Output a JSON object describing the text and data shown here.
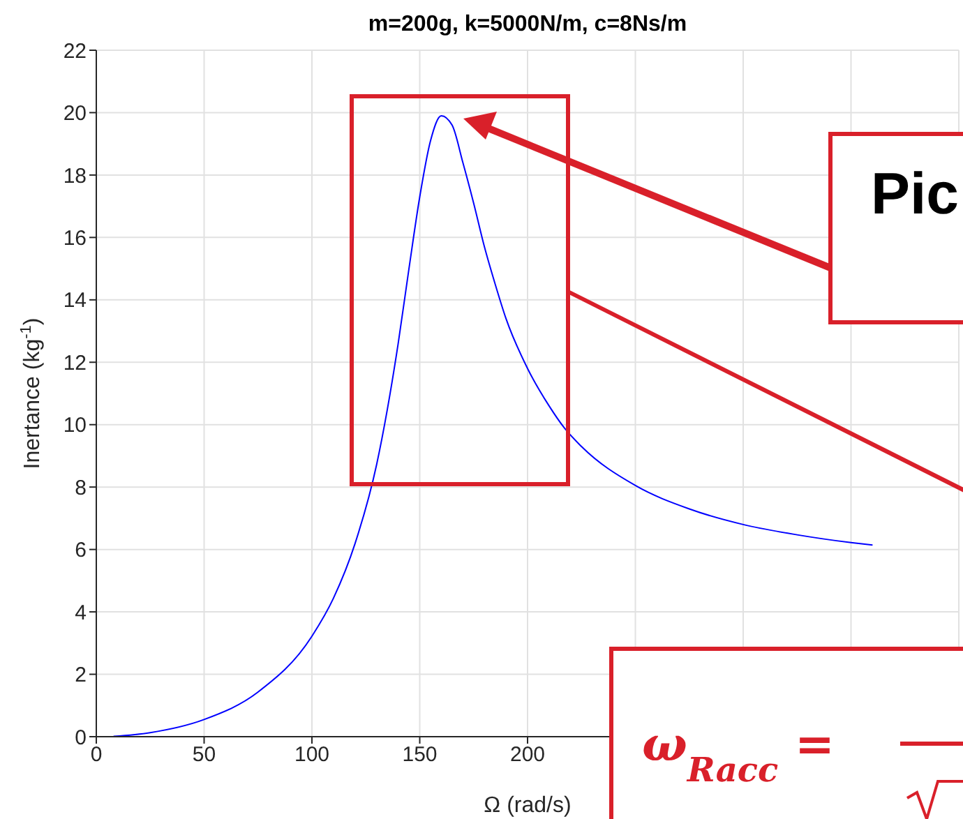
{
  "chart_data": {
    "type": "line",
    "title": "m=200g, k=5000N/m, c=8Ns/m",
    "xlabel": "Ω (rad/s)",
    "ylabel": "Inertance (kg$^{-1}$)",
    "x": [
      8,
      25,
      50,
      75,
      100,
      110,
      120,
      130,
      135,
      140,
      145,
      150,
      155,
      160,
      165,
      170,
      175,
      180,
      185,
      190,
      200,
      210,
      217,
      225,
      250,
      275,
      300,
      325,
      350,
      360
    ],
    "series": [
      {
        "color": "#0000ff",
        "values": [
          0.01,
          0.13,
          0.55,
          1.43,
          3.22,
          4.44,
          6.19,
          8.72,
          10.5,
          12.6,
          15.0,
          17.3,
          19.1,
          19.9,
          19.6,
          18.4,
          17.1,
          15.7,
          14.5,
          13.4,
          11.8,
          10.6,
          9.9,
          9.3,
          8.05,
          7.3,
          6.8,
          6.47,
          6.22,
          6.14
        ]
      }
    ],
    "xlim": [
      0,
      400
    ],
    "xticks": [
      0,
      50,
      100,
      150,
      200,
      {
        "value": 250,
        "label": null
      },
      {
        "value": 300,
        "label": null
      },
      {
        "value": 350,
        "label": null
      },
      {
        "value": 400,
        "label": null
      }
    ],
    "ylim": [
      0,
      22
    ],
    "yticks": [
      0,
      2,
      4,
      6,
      8,
      10,
      12,
      14,
      16,
      18,
      20,
      22
    ],
    "grid": true,
    "annotations": [
      "Pic",
      "ω$_{Racc}$ ="
    ]
  }
}
